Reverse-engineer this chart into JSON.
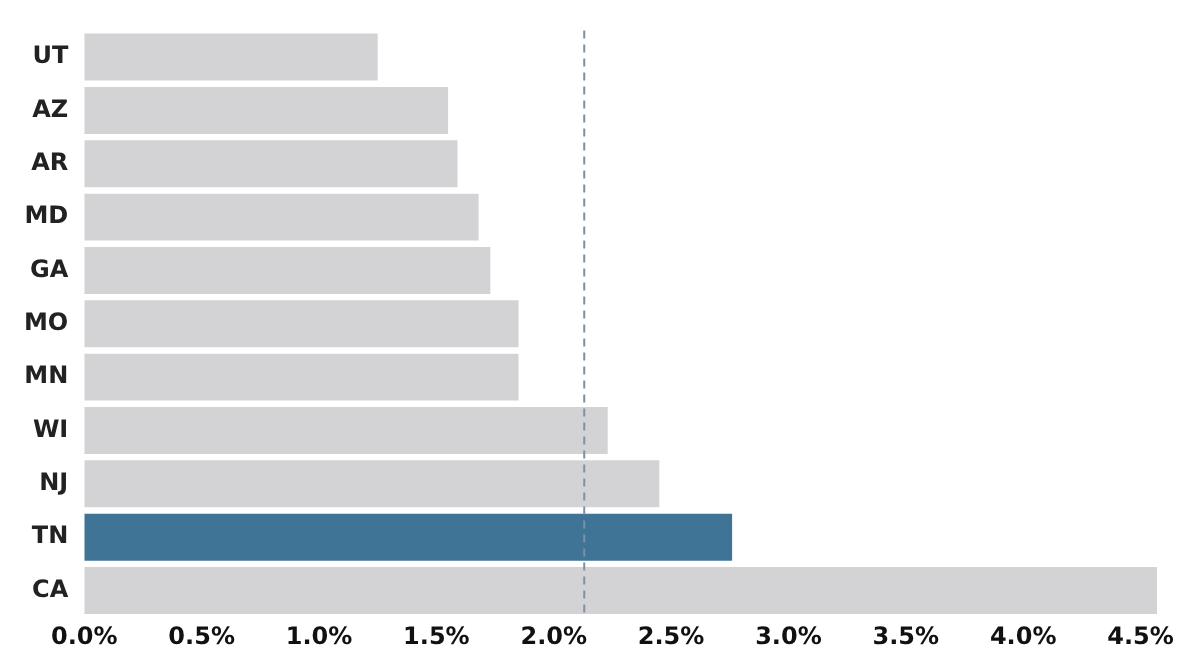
{
  "chart_data": {
    "type": "bar",
    "orientation": "horizontal",
    "categories": [
      "UT",
      "AZ",
      "AR",
      "MD",
      "GA",
      "MO",
      "MN",
      "WI",
      "NJ",
      "TN",
      "CA"
    ],
    "values": [
      1.25,
      1.55,
      1.59,
      1.68,
      1.73,
      1.85,
      1.85,
      2.23,
      2.45,
      2.76,
      4.57
    ],
    "colors": [
      "#d3d3d5",
      "#d3d3d5",
      "#d3d3d5",
      "#d3d3d5",
      "#d3d3d5",
      "#d3d3d5",
      "#d3d3d5",
      "#d3d3d5",
      "#d3d3d5",
      "#3f7497",
      "#d3d3d5"
    ],
    "xlim": [
      0,
      4.6
    ],
    "xticks": [
      {
        "value": 0,
        "label": "0.0%"
      },
      {
        "value": 0.5,
        "label": "0.5%"
      },
      {
        "value": 1,
        "label": "1.0%"
      },
      {
        "value": 1.5,
        "label": "1.5%"
      },
      {
        "value": 2,
        "label": "2.0%"
      },
      {
        "value": 2.5,
        "label": "2.5%"
      },
      {
        "value": 3,
        "label": "3.0%"
      },
      {
        "value": 3.5,
        "label": "3.5%"
      },
      {
        "value": 4,
        "label": "4.0%"
      },
      {
        "value": 4.5,
        "label": "4.5%"
      }
    ],
    "ref_lines": [
      {
        "axis": "x",
        "value": 2.13,
        "color": "#7f8fa6",
        "line_style": "dashed"
      }
    ],
    "grid": false,
    "legend": false
  }
}
